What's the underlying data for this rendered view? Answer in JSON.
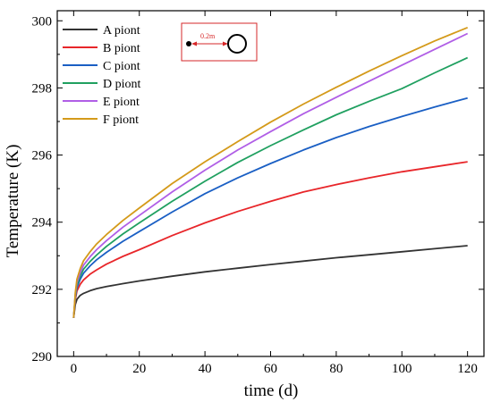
{
  "chart_data": {
    "type": "line",
    "xlabel": "time (d)",
    "ylabel": "Temperature (K)",
    "xlim": [
      -5,
      125
    ],
    "ylim": [
      290,
      300.3
    ],
    "xticks": [
      0,
      20,
      40,
      60,
      80,
      100,
      120
    ],
    "yticks": [
      290,
      292,
      294,
      296,
      298,
      300
    ],
    "grid": false,
    "legend_position": "top-left",
    "x": [
      0,
      0.5,
      1,
      2,
      3,
      5,
      7,
      10,
      15,
      20,
      30,
      40,
      50,
      60,
      70,
      80,
      90,
      100,
      110,
      120
    ],
    "series": [
      {
        "name": "A piont",
        "color": "#333333",
        "values": [
          291.15,
          291.55,
          291.7,
          291.82,
          291.88,
          291.96,
          292.02,
          292.08,
          292.17,
          292.25,
          292.39,
          292.52,
          292.63,
          292.74,
          292.84,
          292.94,
          293.03,
          293.12,
          293.21,
          293.3
        ]
      },
      {
        "name": "B piont",
        "color": "#e8262a",
        "values": [
          291.15,
          291.7,
          291.95,
          292.15,
          292.28,
          292.45,
          292.58,
          292.75,
          292.98,
          293.18,
          293.6,
          293.98,
          294.32,
          294.62,
          294.9,
          295.12,
          295.32,
          295.5,
          295.65,
          295.8
        ]
      },
      {
        "name": "C piont",
        "color": "#1a5fc4",
        "values": [
          291.15,
          291.75,
          292.05,
          292.3,
          292.48,
          292.7,
          292.88,
          293.1,
          293.43,
          293.72,
          294.3,
          294.85,
          295.32,
          295.75,
          296.15,
          296.52,
          296.85,
          297.15,
          297.43,
          297.7
        ]
      },
      {
        "name": "D piont",
        "color": "#20a060",
        "values": [
          291.15,
          291.8,
          292.12,
          292.4,
          292.6,
          292.83,
          293.02,
          293.28,
          293.65,
          293.98,
          294.62,
          295.22,
          295.78,
          296.28,
          296.75,
          297.2,
          297.6,
          297.98,
          298.45,
          298.9
        ]
      },
      {
        "name": "E piont",
        "color": "#b05ee6",
        "values": [
          291.15,
          291.85,
          292.2,
          292.5,
          292.72,
          292.97,
          293.18,
          293.45,
          293.85,
          294.2,
          294.9,
          295.55,
          296.15,
          296.7,
          297.23,
          297.72,
          298.2,
          298.68,
          299.15,
          299.62
        ]
      },
      {
        "name": "F piont",
        "color": "#d49a1a",
        "values": [
          291.15,
          291.9,
          292.3,
          292.62,
          292.85,
          293.12,
          293.35,
          293.63,
          294.05,
          294.42,
          295.15,
          295.8,
          296.4,
          296.98,
          297.52,
          298.02,
          298.5,
          298.96,
          299.4,
          299.8
        ]
      }
    ],
    "inset": {
      "label": "0.2m",
      "color": "#d62728"
    }
  }
}
